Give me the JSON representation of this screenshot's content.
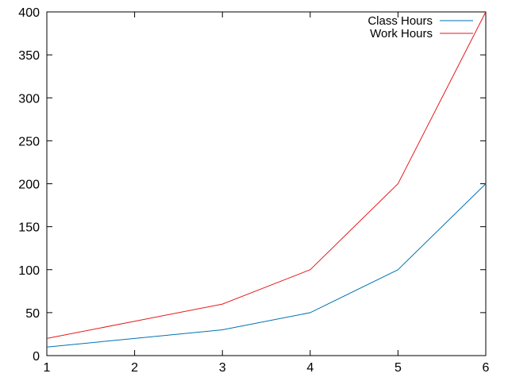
{
  "chart_data": {
    "type": "line",
    "x": [
      1,
      2,
      3,
      4,
      5,
      6
    ],
    "xlim": [
      1,
      6
    ],
    "ylim": [
      0,
      400
    ],
    "xticks": [
      1,
      2,
      3,
      4,
      5,
      6
    ],
    "yticks": [
      0,
      50,
      100,
      150,
      200,
      250,
      300,
      350,
      400
    ],
    "grid": false,
    "legend_position": "top-right",
    "series": [
      {
        "name": "Class Hours",
        "color": "#0072b2",
        "values": [
          10,
          20,
          30,
          50,
          100,
          200
        ]
      },
      {
        "name": "Work Hours",
        "color": "#e41a1c",
        "values": [
          20,
          40,
          60,
          100,
          200,
          400
        ]
      }
    ]
  }
}
